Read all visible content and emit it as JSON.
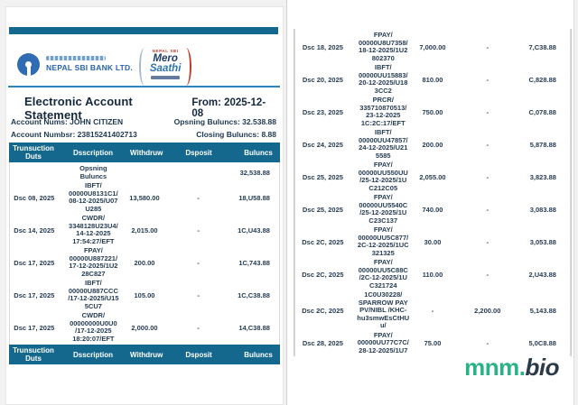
{
  "colors": {
    "accent_teal": "#15688d",
    "line_blue": "#2e86c1",
    "sbi_blue": "#2f6cb3",
    "bank_text_blue": "#2a63ae",
    "mero_navy": "#1e3a66",
    "mero_blue": "#2e75b6",
    "mero_red": "#c0392b",
    "table_text": "#263c53",
    "brand_green": "#2ab287",
    "brand_dark": "#2b3a4a"
  },
  "left_page": {
    "bank": {
      "name": "NEPAL SBI BANK LTD.",
      "mero_top": "NEPAL SBI",
      "mero_line1": "Mero",
      "mero_line2": "Saathi"
    },
    "statement": {
      "title": "Electronic Account Statement",
      "from": "From: 2025-12-08",
      "account_name": "Account Nums: JOHN CITIZEN",
      "account_number": "Account Numbsr: 23815241402713",
      "opening_balance": "Opsning Buluncs: 32.538.88",
      "closing_balance": "Closing Buluncs: 8.88"
    },
    "table": {
      "columns": [
        "Trunsuction Duts",
        "Dsscription",
        "Withdruw",
        "Dsposit",
        "Buluncs"
      ],
      "rows": [
        {
          "date": "",
          "desc": [
            "Opsning",
            "Buluncs"
          ],
          "withdraw": "",
          "deposit": "",
          "balance": "32,538.88"
        },
        {
          "date": "Dsc 08, 2025",
          "desc": [
            "IBFT/",
            "00000U8131C1/",
            "08-12-2025/U07",
            "U285"
          ],
          "withdraw": "13,580.00",
          "deposit": "-",
          "balance": "18,U58.88"
        },
        {
          "date": "Dsc 14, 2025",
          "desc": [
            "CWDR/",
            "3348128U23U4/",
            "14-12-2025",
            "17:54:27/EFT"
          ],
          "withdraw": "2,015.00",
          "deposit": "-",
          "balance": "1C,U43.88"
        },
        {
          "date": "Dsc 17, 2025",
          "desc": [
            "FPAY/",
            "00000U887221/",
            "17-12-2025/1U2",
            "28C827"
          ],
          "withdraw": "200.00",
          "deposit": "-",
          "balance": "1C,743.88"
        },
        {
          "date": "Dsc 17, 2025",
          "desc": [
            "IBFT/",
            "00000U887CCC",
            "/17-12-2025/U15",
            "5CU7"
          ],
          "withdraw": "105.00",
          "deposit": "-",
          "balance": "1C,C38.88"
        },
        {
          "date": "Dsc 17, 2025",
          "desc": [
            "CWDR/",
            "00000000U0U0",
            "/17-12-2025",
            "18:20:07/EFT"
          ],
          "withdraw": "2,000.00",
          "deposit": "-",
          "balance": "14,C38.88"
        }
      ]
    }
  },
  "right_page": {
    "table": {
      "rows": [
        {
          "date": "Dsc 18, 2025",
          "desc": [
            "FPAY/",
            "00000U8U7358/",
            "18-12-2025/1U2",
            "802370"
          ],
          "withdraw": "7,000.00",
          "deposit": "-",
          "balance": "7,C38.88"
        },
        {
          "date": "Dsc 20, 2025",
          "desc": [
            "IBFT/",
            "00000UU15883/",
            "20-12-2025/U18",
            "3CC2"
          ],
          "withdraw": "810.00",
          "deposit": "-",
          "balance": "C,828.88"
        },
        {
          "date": "Dsc 23, 2025",
          "desc": [
            "PRCR/",
            "335710870513/",
            "23-12-2025",
            "1C:2C:17/EFT"
          ],
          "withdraw": "750.00",
          "deposit": "-",
          "balance": "C,078.88"
        },
        {
          "date": "Dsc 24, 2025",
          "desc": [
            "IBFT/",
            "00000UU47857/",
            "24-12-2025/U21",
            "5585"
          ],
          "withdraw": "200.00",
          "deposit": "-",
          "balance": "5,878.88"
        },
        {
          "date": "Dsc 25, 2025",
          "desc": [
            "FPAY/",
            "00000UU550UU",
            "/25-12-2025/1U",
            "C212C05"
          ],
          "withdraw": "2,055.00",
          "deposit": "-",
          "balance": "3,823.88"
        },
        {
          "date": "Dsc 25, 2025",
          "desc": [
            "FPAY/",
            "00000UU5540C",
            "/25-12-2025/1U",
            "C23C137"
          ],
          "withdraw": "740.00",
          "deposit": "-",
          "balance": "3,083.88"
        },
        {
          "date": "Dsc 2C, 2025",
          "desc": [
            "FPAY/",
            "00000UU5C877/",
            "2C-12-2025/1UC",
            "321325"
          ],
          "withdraw": "30.00",
          "deposit": "-",
          "balance": "3,053.88"
        },
        {
          "date": "Dsc 2C, 2025",
          "desc": [
            "FPAY/",
            "00000UU5C88C",
            "/2C-12-2025/1U",
            "C321724"
          ],
          "withdraw": "110.00",
          "deposit": "-",
          "balance": "2,U43.88"
        },
        {
          "date": "Dsc 2C, 2025",
          "desc": [
            "1C0U30228/",
            "SPARROW PAY",
            "PV/NIBL /KHC-",
            "hu3smwEsCtHU",
            "u/"
          ],
          "withdraw": "-",
          "deposit": "2,200.00",
          "balance": "5,143.88"
        },
        {
          "date": "Dsc 28, 2025",
          "desc": [
            "FPAY/",
            "00000UU77C7C/",
            "28-12-2025/1U7"
          ],
          "withdraw": "75.00",
          "deposit": "-",
          "balance": "5,0C8.88"
        }
      ]
    },
    "watermark": {
      "part1": "mnm.",
      "part2": "bio"
    }
  }
}
